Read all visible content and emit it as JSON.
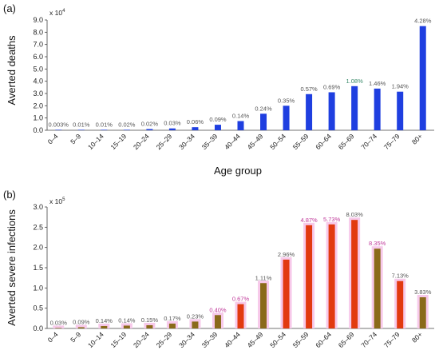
{
  "chart_data": [
    {
      "type": "bar",
      "panel_label": "(a)",
      "ylabel": "Averted deaths",
      "xlabel": "Age group",
      "multiplier_prefix": "x 10",
      "multiplier_exp": "4",
      "ylim": [
        0,
        9
      ],
      "yticks": [
        "0.0",
        "1.0",
        "2.0",
        "3.0",
        "4.0",
        "5.0",
        "6.0",
        "7.0",
        "8.0",
        "9.0"
      ],
      "categories": [
        "0–4",
        "5–9",
        "10–14",
        "15–19",
        "20–24",
        "25–29",
        "30–34",
        "35–39",
        "40–44",
        "45–49",
        "50–54",
        "55–59",
        "60–64",
        "65–69",
        "70–74",
        "75–79",
        "80+"
      ],
      "values": [
        0.01,
        0.01,
        0.02,
        0.02,
        0.1,
        0.15,
        0.25,
        0.45,
        0.75,
        1.35,
        2.0,
        2.95,
        3.1,
        3.6,
        3.4,
        3.15,
        8.5
      ],
      "data_labels": [
        "0.003%",
        "0.01%",
        "0.01%",
        "0.02%",
        "0.02%",
        "0.03%",
        "0.06%",
        "0.09%",
        "0.14%",
        "0.24%",
        "0.35%",
        "0.57%",
        "0.69%",
        "1.08%",
        "1.46%",
        "1.94%",
        "4.28%"
      ],
      "label_colors": [
        "#555555",
        "#555555",
        "#555555",
        "#555555",
        "#555555",
        "#555555",
        "#555555",
        "#555555",
        "#555555",
        "#555555",
        "#555555",
        "#555555",
        "#555555",
        "#3a8a6a",
        "#555555",
        "#555555",
        "#555555"
      ],
      "bar_color": "#1f3fe0",
      "grid": false
    },
    {
      "type": "bar",
      "panel_label": "(b)",
      "ylabel": "Averted severe infections",
      "xlabel": "",
      "multiplier_prefix": "x 10",
      "multiplier_exp": "5",
      "ylim": [
        0,
        3
      ],
      "yticks": [
        "0.0",
        "0.5",
        "1.0",
        "1.5",
        "2.0",
        "2.5",
        "3.0"
      ],
      "categories": [
        "0–4",
        "5–9",
        "10–14",
        "15–19",
        "20–24",
        "25–29",
        "30–34",
        "35–39",
        "40–44",
        "45–49",
        "50–54",
        "55–59",
        "60–64",
        "65–69",
        "70–74",
        "75–79",
        "80+"
      ],
      "values": [
        0.005,
        0.03,
        0.06,
        0.07,
        0.08,
        0.12,
        0.17,
        0.33,
        0.6,
        1.12,
        1.7,
        2.55,
        2.57,
        2.68,
        1.97,
        1.17,
        0.77
      ],
      "data_labels": [
        "0.03%",
        "0.09%",
        "0.14%",
        "0.14%",
        "0.15%",
        "0.17%",
        "0.23%",
        "0.40%",
        "0.67%",
        "1.11%",
        "2.96%",
        "4.87%",
        "5.73%",
        "8.03%",
        "8.35%",
        "7.13%",
        "3.83%"
      ],
      "label_colors": [
        "#555555",
        "#555555",
        "#555555",
        "#555555",
        "#555555",
        "#555555",
        "#555555",
        "#c0399a",
        "#c0399a",
        "#555555",
        "#555555",
        "#c0399a",
        "#c0399a",
        "#555555",
        "#c0399a",
        "#555555",
        "#555555"
      ],
      "bar_colors": [
        "#8a6a1a",
        "#8a6a1a",
        "#8a6a1a",
        "#8a6a1a",
        "#8a6a1a",
        "#8a6a1a",
        "#8a6a1a",
        "#8a6a1a",
        "#e23a10",
        "#8a6a1a",
        "#e23a10",
        "#e23a10",
        "#e23a10",
        "#e23a10",
        "#8a6a1a",
        "#e23a10",
        "#8a6a1a"
      ],
      "halo_color": "#f7c9ea",
      "grid": false
    }
  ]
}
